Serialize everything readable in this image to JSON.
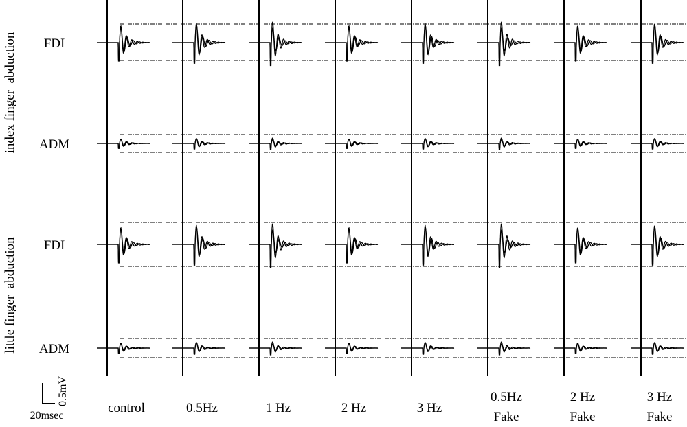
{
  "row_groups": [
    {
      "label": "index finger  abduction",
      "muscles": [
        "FDI",
        "ADM"
      ]
    },
    {
      "label": "little finger  abduction",
      "muscles": [
        "FDI",
        "ADM"
      ]
    }
  ],
  "columns": [
    {
      "lines": [
        "control"
      ]
    },
    {
      "lines": [
        "0.5Hz"
      ]
    },
    {
      "lines": [
        "1 Hz"
      ]
    },
    {
      "lines": [
        "2 Hz"
      ]
    },
    {
      "lines": [
        "3 Hz"
      ]
    },
    {
      "lines": [
        "0.5Hz",
        "Fake"
      ]
    },
    {
      "lines": [
        "2 Hz",
        "Fake"
      ]
    },
    {
      "lines": [
        "3 Hz",
        "Fake"
      ]
    }
  ],
  "scale_bar": {
    "amplitude": "0.5mV",
    "time": "20msec"
  }
}
